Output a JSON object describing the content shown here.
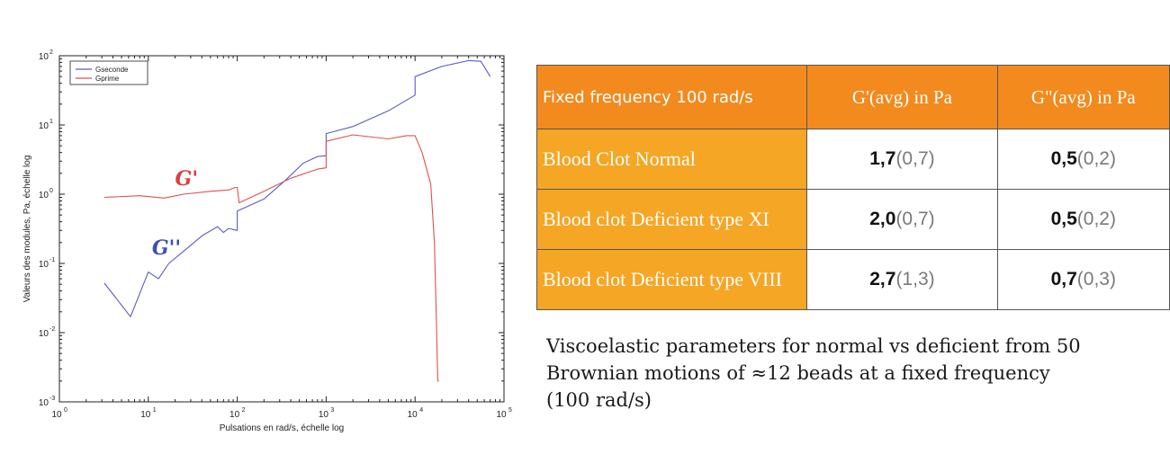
{
  "chart_data": {
    "type": "line",
    "xscale": "log",
    "yscale": "log",
    "xlim": [
      1,
      100000
    ],
    "ylim": [
      0.001,
      100
    ],
    "xlabel": "Pulsations en rad/s, échelle log",
    "ylabel": "Valeurs des modules, Pa, échelle log",
    "x_ticks": [
      {
        "base": "10",
        "exp": "0"
      },
      {
        "base": "10",
        "exp": "1"
      },
      {
        "base": "10",
        "exp": "2"
      },
      {
        "base": "10",
        "exp": "3"
      },
      {
        "base": "10",
        "exp": "4"
      },
      {
        "base": "10",
        "exp": "5"
      }
    ],
    "y_ticks": [
      {
        "base": "10",
        "exp": "-3"
      },
      {
        "base": "10",
        "exp": "-2"
      },
      {
        "base": "10",
        "exp": "-1"
      },
      {
        "base": "10",
        "exp": "0"
      },
      {
        "base": "10",
        "exp": "1"
      },
      {
        "base": "10",
        "exp": "2"
      }
    ],
    "legend_position": "top-left",
    "series": [
      {
        "name": "Gseconde",
        "color": "#5a5ac8",
        "x": [
          3.2,
          6.3,
          10,
          13,
          17,
          25,
          40,
          60,
          70,
          80,
          100,
          100,
          200,
          350,
          550,
          800,
          1000,
          1000,
          2000,
          5000,
          10000,
          10000,
          20000,
          40000,
          55000,
          70000
        ],
        "y": [
          0.052,
          0.017,
          0.075,
          0.06,
          0.1,
          0.15,
          0.25,
          0.34,
          0.28,
          0.32,
          0.3,
          0.57,
          0.85,
          1.6,
          2.8,
          3.5,
          3.6,
          7.5,
          9.5,
          16,
          27,
          50,
          70,
          85,
          83,
          50
        ]
      },
      {
        "name": "Gprime",
        "color": "#e05050",
        "x": [
          3.2,
          8,
          15,
          25,
          50,
          80,
          95,
          100,
          105,
          200,
          400,
          800,
          1000,
          1000,
          2000,
          5000,
          8000,
          10000,
          12000,
          15000,
          16500,
          17500,
          18000,
          18500
        ],
        "y": [
          0.9,
          0.95,
          0.88,
          1.0,
          1.1,
          1.15,
          1.25,
          1.25,
          0.75,
          1.1,
          1.7,
          2.3,
          2.4,
          5.8,
          7.2,
          6.3,
          7.0,
          7.0,
          4.0,
          1.4,
          0.2,
          0.01,
          0.002,
          0.002
        ]
      }
    ],
    "annotations": [
      {
        "text": "G'",
        "color": "#e03c3c",
        "x": 20,
        "y": 1.35
      },
      {
        "text": "G''",
        "color": "#3c50b4",
        "x": 11,
        "y": 0.135
      }
    ]
  },
  "table": {
    "headers": [
      "Fixed frequency 100 rad/s",
      "G'(avg) in Pa",
      "G\"(avg) in Pa"
    ],
    "rows": [
      {
        "label": "Blood Clot Normal",
        "g1_main": "1,7",
        "g1_sub": "(0,7)",
        "g2_main": "0,5",
        "g2_sub": "(0,2)"
      },
      {
        "label": "Blood clot Deficient type XI",
        "g1_main": "2,0",
        "g1_sub": "(0,7)",
        "g2_main": "0,5",
        "g2_sub": "(0,2)"
      },
      {
        "label": "Blood clot Deficient type VIII",
        "g1_main": "2,7",
        "g1_sub": "(1,3)",
        "g2_main": "0,7",
        "g2_sub": "(0,3)"
      }
    ]
  },
  "caption": {
    "line1": "Viscoelastic parameters for normal vs deficient from 50",
    "line2": "Brownian motions of ≈12 beads at a fixed frequency",
    "line3": "(100 rad/s)"
  }
}
